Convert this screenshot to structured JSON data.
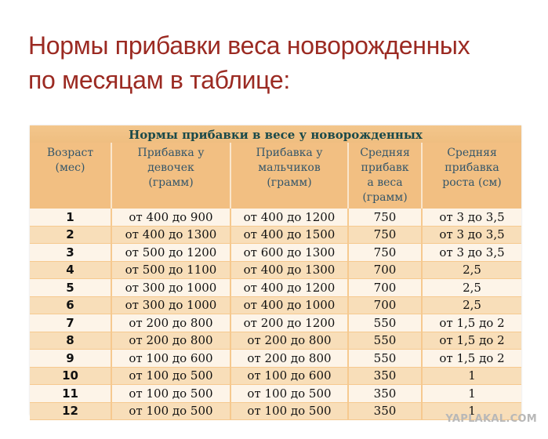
{
  "title": {
    "line1": "Нормы прибавки веса новорожденных",
    "line2": "по месяцам в таблице:"
  },
  "table": {
    "caption": "Нормы прибавки в весе у новорожденных",
    "headers": [
      [
        "Возраст",
        "(мес)"
      ],
      [
        "Прибавка у",
        "девочек",
        "(грамм)"
      ],
      [
        "Прибавка у",
        "мальчиков",
        "(грамм)"
      ],
      [
        "Средняя",
        "прибавк",
        "а веса",
        "(грамм)"
      ],
      [
        "Средняя",
        "прибавка",
        "роста (см)"
      ]
    ],
    "rows": [
      [
        "1",
        "от 400 до 900",
        "от 400 до 1200",
        "750",
        "от 3 до 3,5"
      ],
      [
        "2",
        "от 400 до 1300",
        "от 400 до 1500",
        "750",
        "от 3 до 3,5"
      ],
      [
        "3",
        "от 500 до 1200",
        "от 600 до 1300",
        "750",
        "от 3 до 3,5"
      ],
      [
        "4",
        "от 500 до 1100",
        "от 400 до 1300",
        "700",
        "2,5"
      ],
      [
        "5",
        "от 300 до 1000",
        "от 400 до 1200",
        "700",
        "2,5"
      ],
      [
        "6",
        "от 300 до 1000",
        "от 400 до 1000",
        "700",
        "2,5"
      ],
      [
        "7",
        "от 200 до 800",
        "от 200 до 1200",
        "550",
        "от 1,5 до 2"
      ],
      [
        "8",
        "от 200 до 800",
        "от 200 до 800",
        "550",
        "от 1,5 до 2"
      ],
      [
        "9",
        "от 100 до 600",
        "от 200 до 800",
        "550",
        "от 1,5 до 2"
      ],
      [
        "10",
        "от 100 до 500",
        "от 100 до 600",
        "350",
        "1"
      ],
      [
        "11",
        "от 100 до 500",
        "от 100 до 500",
        "350",
        "1"
      ],
      [
        "12",
        "от 100 до 500",
        "от 100 до 500",
        "350",
        "1"
      ]
    ]
  },
  "watermark": "YAPLAKAL.COM",
  "colors": {
    "title": "#9b2a22",
    "header_bg": "#f2bf82",
    "header_text": "#34566a",
    "caption_text": "#1b4a4a",
    "row_light": "#fdf4e8",
    "row_dark": "#f8deb9"
  }
}
